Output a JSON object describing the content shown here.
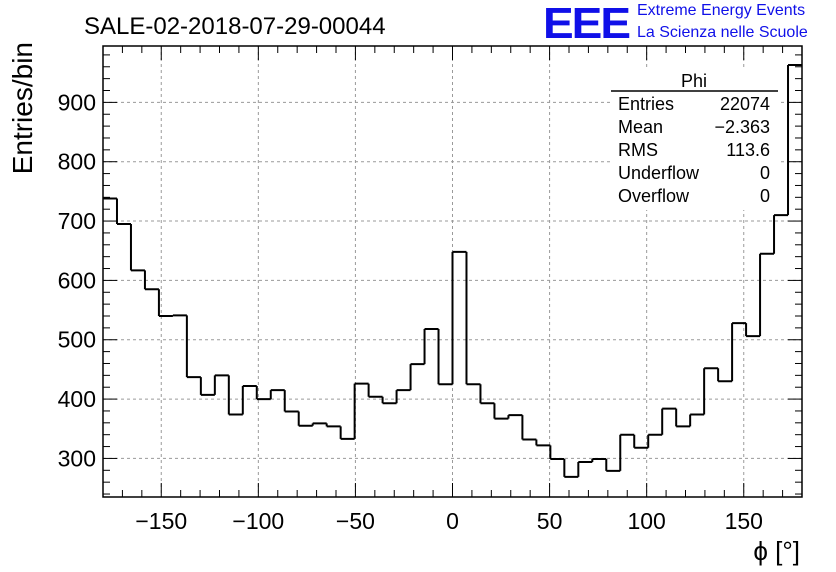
{
  "chart_data": {
    "type": "histogram",
    "title": "SALE-02-2018-07-29-00044",
    "xlabel": "ϕ [°]",
    "ylabel": "Entries/bin",
    "xlim": [
      -180,
      180
    ],
    "ylim": [
      235,
      995
    ],
    "xticks": [
      -150,
      -100,
      -50,
      0,
      50,
      100,
      150
    ],
    "xtick_labels": [
      "−150",
      "−100",
      "−50",
      "0",
      "50",
      "100",
      "150"
    ],
    "yticks": [
      300,
      400,
      500,
      600,
      700,
      800,
      900
    ],
    "yticks_labels": [
      "300",
      "400",
      "500",
      "600",
      "700",
      "800",
      "900"
    ],
    "grid": true,
    "bin_width": 7.2,
    "series": [
      {
        "name": "Phi",
        "values": [
          738,
          695,
          617,
          585,
          540,
          541,
          437,
          407,
          440,
          374,
          422,
          400,
          415,
          379,
          355,
          359,
          354,
          333,
          426,
          404,
          393,
          415,
          459,
          518,
          425,
          648,
          425,
          393,
          367,
          373,
          332,
          322,
          299,
          269,
          294,
          299,
          279,
          340,
          318,
          340,
          384,
          354,
          374,
          452,
          430,
          528,
          506,
          645,
          710,
          963
        ]
      }
    ],
    "stats_box": {
      "title": "Phi",
      "rows": [
        {
          "label": "Entries",
          "value": "22074"
        },
        {
          "label": "Mean",
          "value": "−2.363"
        },
        {
          "label": "RMS",
          "value": "113.6"
        },
        {
          "label": "Underflow",
          "value": "0"
        },
        {
          "label": "Overflow",
          "value": "0"
        }
      ]
    }
  },
  "logo": {
    "letters": "EEE",
    "line1": "Extreme Energy Events",
    "line2": "La Scienza nelle Scuole",
    "color": "#1010e8"
  }
}
